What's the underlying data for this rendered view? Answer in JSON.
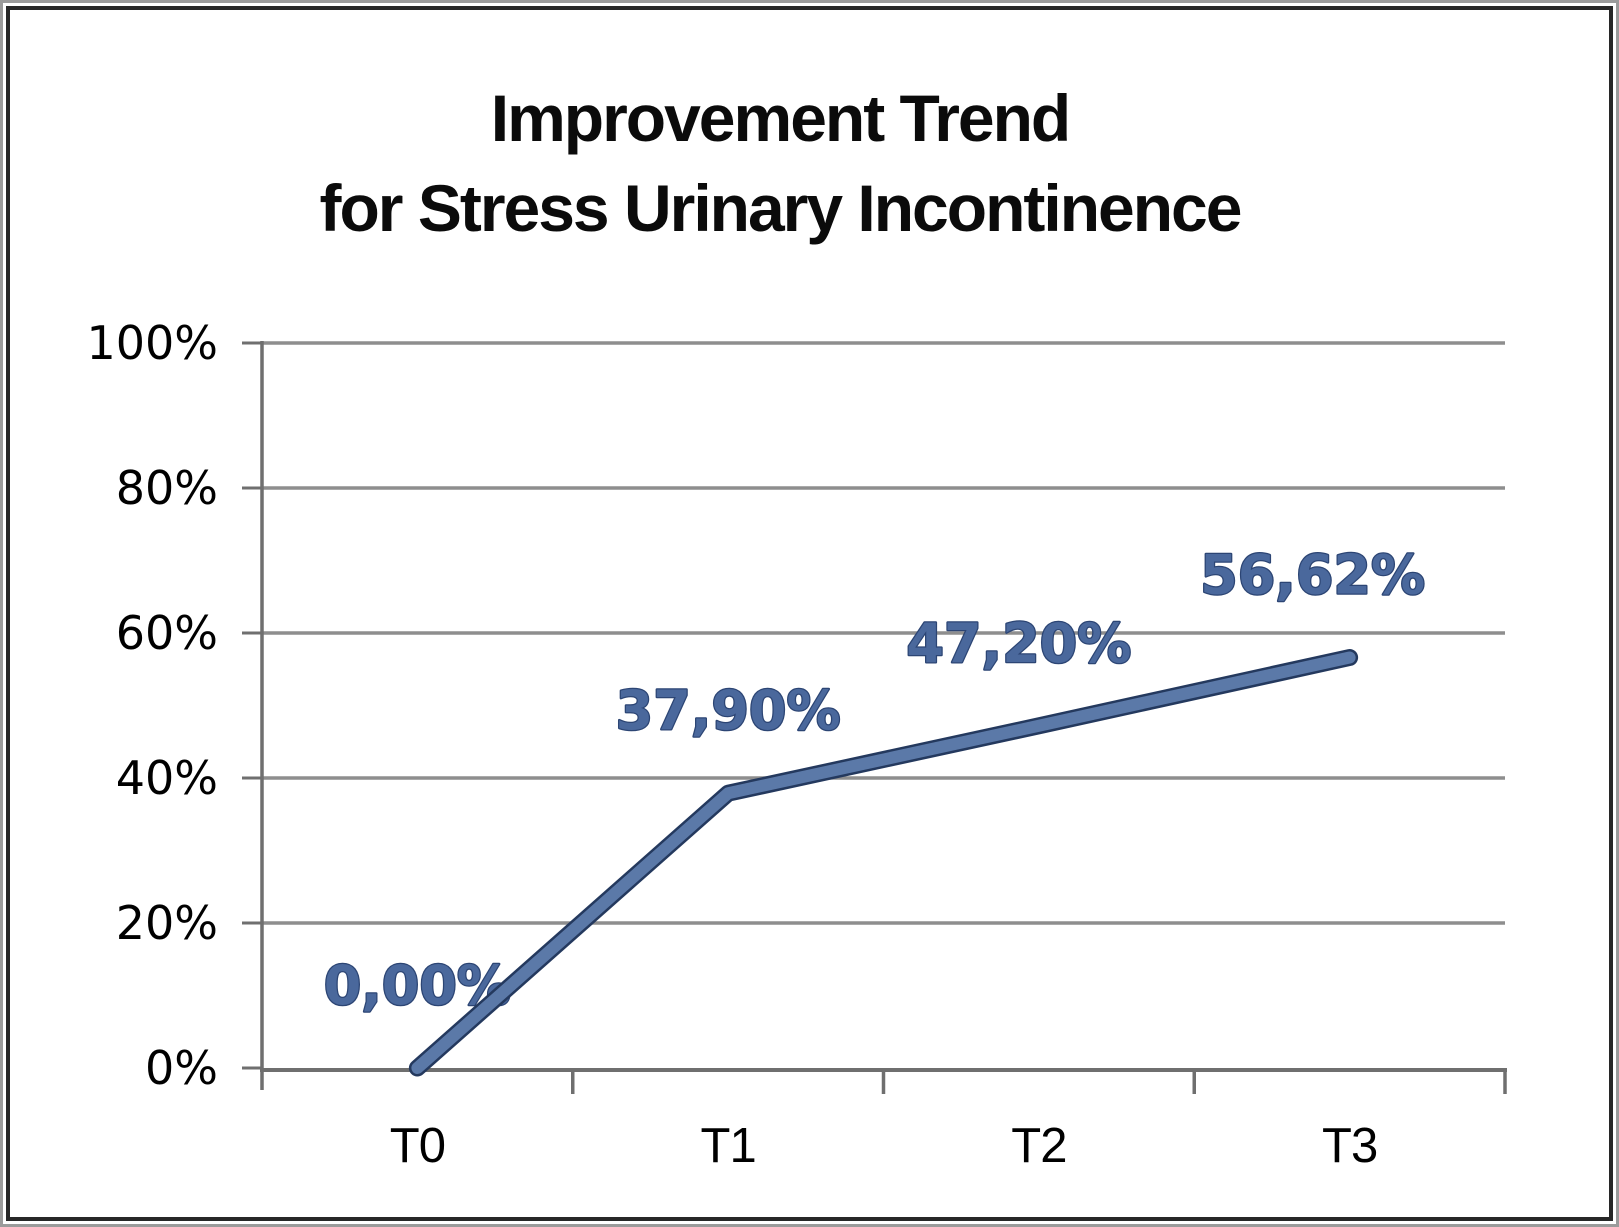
{
  "chart_data": {
    "type": "line",
    "title_line1": "Improvement Trend",
    "title_line2": "for Stress Urinary Incontinence",
    "categories": [
      "T0",
      "T1",
      "T2",
      "T3"
    ],
    "series": [
      {
        "name": "Improvement trend",
        "values": [
          0.0,
          37.9,
          47.2,
          56.62
        ]
      }
    ],
    "data_labels": [
      "0,00%",
      "37,90%",
      "47,20%",
      "56,62%"
    ],
    "xlabel": "",
    "ylabel": "",
    "ylim": [
      0,
      100
    ],
    "ytick_values": [
      0,
      20,
      40,
      60,
      80,
      100
    ],
    "ytick_labels": [
      "0%",
      "20%",
      "40%",
      "60%",
      "80%",
      "100%"
    ],
    "grid": true,
    "legend": "none",
    "colors": {
      "line_fill": "#5b79a8",
      "line_outline": "#24395e",
      "data_label_fill": "#4a689c",
      "data_label_stroke": "#2c4574",
      "gridline": "#8e8e8e",
      "axis": "#6f6f6f",
      "title_text": "#0b0b0b",
      "tick_text": "#000000",
      "frame_outer": "#9b9b9b",
      "frame_inner": "#272727",
      "background": "#ffffff"
    }
  }
}
